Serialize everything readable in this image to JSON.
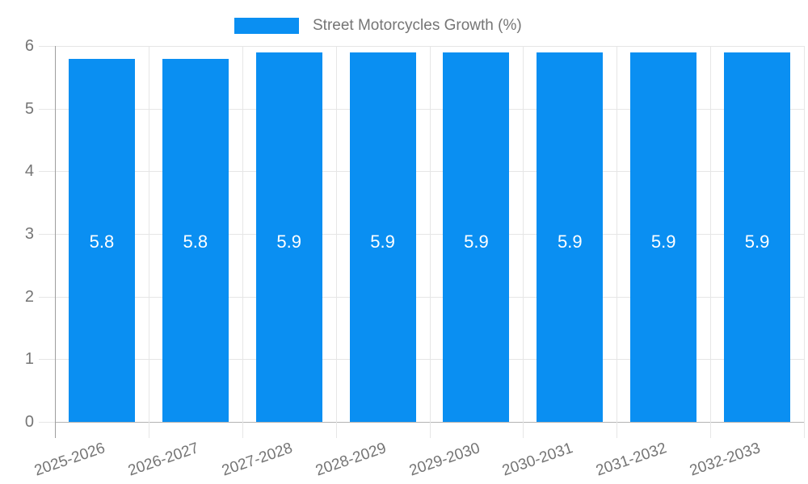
{
  "chart_data": {
    "type": "bar",
    "title": "Street Motorcycles Growth (%)",
    "legend": {
      "position": "top",
      "label": "Street Motorcycles Growth (%)"
    },
    "categories": [
      "2025-2026",
      "2026-2027",
      "2027-2028",
      "2028-2029",
      "2029-2030",
      "2030-2031",
      "2031-2032",
      "2032-2033"
    ],
    "values": [
      5.8,
      5.8,
      5.9,
      5.9,
      5.9,
      5.9,
      5.9,
      5.9
    ],
    "bar_labels": [
      "5.8",
      "5.8",
      "5.9",
      "5.9",
      "5.9",
      "5.9",
      "5.9",
      "5.9"
    ],
    "xlabel": "",
    "ylabel": "",
    "ylim": [
      0,
      6
    ],
    "yticks": [
      0,
      1,
      2,
      3,
      4,
      5,
      6
    ],
    "grid": true,
    "colors": {
      "bar": "#0a8ff2",
      "axis_text": "#757575",
      "bar_label_text": "#ffffff",
      "gridline": "#e6e6e6",
      "baseline": "#b3b3b3",
      "axis_line": "#9e9e9e"
    }
  }
}
